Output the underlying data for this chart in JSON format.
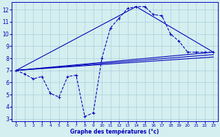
{
  "xlabel": "Graphe des températures (°c)",
  "xlim": [
    -0.5,
    23.5
  ],
  "ylim": [
    2.8,
    12.6
  ],
  "xticks": [
    0,
    1,
    2,
    3,
    4,
    5,
    6,
    7,
    8,
    9,
    10,
    11,
    12,
    13,
    14,
    15,
    16,
    17,
    18,
    19,
    20,
    21,
    22,
    23
  ],
  "yticks": [
    3,
    4,
    5,
    6,
    7,
    8,
    9,
    10,
    11,
    12
  ],
  "background_color": "#d5eef0",
  "grid_color": "#a8d0d8",
  "line_color": "#0000bb",
  "line_width": 0.8,
  "marker": "+",
  "marker_size": 3.5,
  "main_series": {
    "x": [
      0,
      1,
      2,
      3,
      4,
      5,
      6,
      7,
      8,
      9,
      10,
      11,
      12,
      13,
      14,
      15,
      16,
      17,
      18,
      19,
      20,
      21,
      22,
      23
    ],
    "y": [
      7.0,
      6.7,
      6.3,
      6.5,
      5.1,
      4.8,
      6.5,
      6.6,
      3.2,
      3.5,
      8.0,
      10.5,
      11.3,
      12.1,
      12.25,
      12.25,
      11.6,
      11.5,
      10.0,
      9.4,
      8.5,
      8.5,
      8.5,
      8.5
    ]
  },
  "trend_lines": [
    {
      "x": [
        0,
        23
      ],
      "y": [
        7.0,
        8.5
      ]
    },
    {
      "x": [
        0,
        23
      ],
      "y": [
        7.0,
        8.3
      ]
    },
    {
      "x": [
        0,
        23
      ],
      "y": [
        7.0,
        8.1
      ]
    }
  ],
  "peak_line": {
    "x": [
      0,
      14,
      23
    ],
    "y": [
      7.0,
      12.25,
      8.5
    ]
  }
}
